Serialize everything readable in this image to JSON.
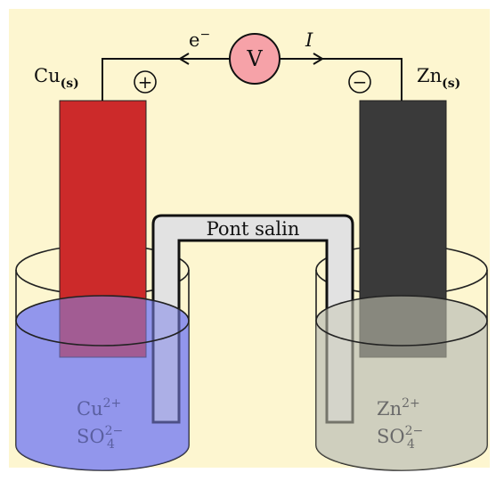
{
  "colors": {
    "background": "#fdf6d0",
    "copper_electrode": "#cc2a2a",
    "zinc_electrode": "#3a3a3a",
    "copper_solution": "#a8abf0",
    "zinc_solution": "#d8d8c8",
    "voltmeter": "#f6a2a8",
    "salt_bridge": "#e2e2e2",
    "ion_text_left": "#5a5fa0",
    "ion_text_right": "#6a6a6a"
  },
  "voltmeter": {
    "symbol": "V"
  },
  "wire": {
    "electron_label": "e",
    "electron_charge": "−",
    "current_label": "I"
  },
  "left": {
    "metal": "Cu",
    "state": "(s)",
    "polarity_symbol": "+",
    "ion1_base": "Cu",
    "ion1_charge": "2+",
    "ion2_base": "SO",
    "ion2_sub": "4",
    "ion2_charge": "2−"
  },
  "right": {
    "metal": "Zn",
    "state": "(s)",
    "polarity_symbol": "−",
    "ion1_base": "Zn",
    "ion1_charge": "2+",
    "ion2_base": "SO",
    "ion2_sub": "4",
    "ion2_charge": "2−"
  },
  "salt_bridge": {
    "label": "Pont salin"
  },
  "icons": [
    "voltmeter-icon",
    "positive-terminal-icon",
    "negative-terminal-icon",
    "electron-arrow-icon",
    "current-arrow-icon"
  ]
}
